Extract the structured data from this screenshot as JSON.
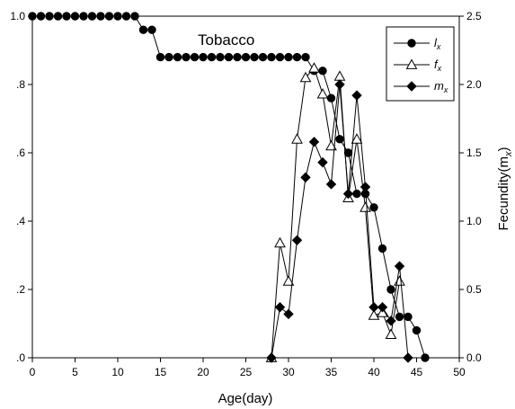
{
  "chart_data": {
    "type": "line",
    "title": "Tobacco",
    "xlabel": "Age(day)",
    "ylabel_left": "",
    "ylabel_right": "Fecundity(m",
    "ylabel_right_sub": "x",
    "ylabel_right_close": ")",
    "xlim": [
      0,
      50
    ],
    "ylim_left": [
      0,
      1.0
    ],
    "ylim_right": [
      0,
      2.5
    ],
    "x_ticks": [
      "0",
      "5",
      "10",
      "15",
      "20",
      "25",
      "30",
      "35",
      "40",
      "45",
      "50"
    ],
    "y_left_ticks": [
      ".0",
      ".2",
      ".4",
      ".6",
      ".8",
      "1.0"
    ],
    "y_left_tick_values": [
      0,
      0.2,
      0.4,
      0.6,
      0.8,
      1.0
    ],
    "y_right_ticks": [
      "0.0",
      "0.5",
      "1.0",
      "1.5",
      "2.0",
      "2.5"
    ],
    "y_right_tick_values": [
      0,
      0.5,
      1.0,
      1.5,
      2.0,
      2.5
    ],
    "grid": false,
    "legend_position": "top-right",
    "series": [
      {
        "name": "l",
        "sub": "x",
        "axis": "left",
        "marker": "circle-filled",
        "x": [
          0,
          1,
          2,
          3,
          4,
          5,
          6,
          7,
          8,
          9,
          10,
          11,
          12,
          13,
          14,
          15,
          16,
          17,
          18,
          19,
          20,
          21,
          22,
          23,
          24,
          25,
          26,
          27,
          28,
          29,
          30,
          31,
          32,
          33,
          34,
          35,
          36,
          37,
          38,
          39,
          40,
          41,
          42,
          43,
          44,
          45,
          46
        ],
        "values": [
          1.0,
          1.0,
          1.0,
          1.0,
          1.0,
          1.0,
          1.0,
          1.0,
          1.0,
          1.0,
          1.0,
          1.0,
          1.0,
          0.96,
          0.96,
          0.88,
          0.88,
          0.88,
          0.88,
          0.88,
          0.88,
          0.88,
          0.88,
          0.88,
          0.88,
          0.88,
          0.88,
          0.88,
          0.88,
          0.88,
          0.88,
          0.88,
          0.88,
          0.84,
          0.84,
          0.76,
          0.64,
          0.6,
          0.48,
          0.48,
          0.44,
          0.32,
          0.2,
          0.12,
          0.12,
          0.08,
          0.0
        ]
      },
      {
        "name": "f",
        "sub": "x",
        "axis": "right",
        "marker": "triangle-open",
        "x": [
          28,
          29,
          30,
          31,
          32,
          33,
          34,
          35,
          36,
          37,
          38,
          39,
          40,
          41,
          42,
          43
        ],
        "values": [
          0.0,
          0.84,
          0.56,
          1.6,
          2.05,
          2.12,
          1.93,
          1.55,
          2.06,
          1.17,
          1.6,
          1.1,
          0.31,
          0.33,
          0.17,
          0.56
        ]
      },
      {
        "name": "m",
        "sub": "x",
        "axis": "right",
        "marker": "diamond-filled",
        "x": [
          28,
          29,
          30,
          31,
          32,
          33,
          34,
          35,
          36,
          37,
          38,
          39,
          40,
          41,
          42,
          43,
          44
        ],
        "values": [
          0.0,
          0.37,
          0.32,
          0.86,
          1.32,
          1.58,
          1.43,
          1.27,
          2.0,
          1.2,
          1.92,
          1.25,
          0.37,
          0.37,
          0.27,
          0.67,
          0.0
        ]
      }
    ]
  }
}
